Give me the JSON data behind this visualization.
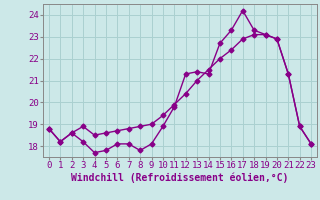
{
  "x": [
    0,
    1,
    2,
    3,
    4,
    5,
    6,
    7,
    8,
    9,
    10,
    11,
    12,
    13,
    14,
    15,
    16,
    17,
    18,
    19,
    20,
    21,
    22,
    23
  ],
  "line1": [
    18.8,
    18.2,
    18.6,
    18.2,
    17.7,
    17.8,
    18.1,
    18.1,
    17.8,
    18.1,
    18.9,
    19.8,
    21.3,
    21.4,
    21.3,
    22.7,
    23.3,
    24.2,
    23.3,
    23.1,
    22.9,
    21.3,
    18.9,
    18.1
  ],
  "line2": [
    18.8,
    18.2,
    18.6,
    18.9,
    18.5,
    18.6,
    18.7,
    18.8,
    18.9,
    19.0,
    19.4,
    19.9,
    20.4,
    21.0,
    21.5,
    22.0,
    22.4,
    22.9,
    23.1,
    23.1,
    22.9,
    21.3,
    18.9,
    18.1
  ],
  "line_color": "#880088",
  "bg_color": "#cce8e8",
  "grid_color": "#aad0d0",
  "xlabel": "Windchill (Refroidissement éolien,°C)",
  "ylim": [
    17.5,
    24.5
  ],
  "xlim": [
    -0.5,
    23.5
  ],
  "yticks": [
    18,
    19,
    20,
    21,
    22,
    23,
    24
  ],
  "xticks": [
    0,
    1,
    2,
    3,
    4,
    5,
    6,
    7,
    8,
    9,
    10,
    11,
    12,
    13,
    14,
    15,
    16,
    17,
    18,
    19,
    20,
    21,
    22,
    23
  ],
  "marker": "D",
  "markersize": 2.5,
  "linewidth": 1.0,
  "font_color": "#880088",
  "font_size": 6.5
}
